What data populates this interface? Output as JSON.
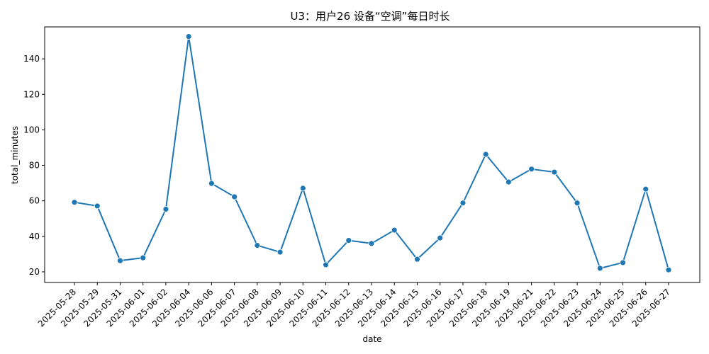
{
  "chart_data": {
    "type": "line",
    "title": "U3：用户26 设备“空调”每日时长",
    "xlabel": "date",
    "ylabel": "total_minutes",
    "ylim": [
      14,
      158
    ],
    "yticks": [
      20,
      40,
      60,
      80,
      100,
      120,
      140
    ],
    "grid": false,
    "color": "#1f77b4",
    "x": [
      "2025-05-28",
      "2025-05-29",
      "2025-05-31",
      "2025-06-01",
      "2025-06-02",
      "2025-06-04",
      "2025-06-06",
      "2025-06-07",
      "2025-06-08",
      "2025-06-09",
      "2025-06-10",
      "2025-06-11",
      "2025-06-12",
      "2025-06-13",
      "2025-06-14",
      "2025-06-15",
      "2025-06-16",
      "2025-06-17",
      "2025-06-18",
      "2025-06-19",
      "2025-06-21",
      "2025-06-22",
      "2025-06-23",
      "2025-06-24",
      "2025-06-25",
      "2025-06-26",
      "2025-06-27"
    ],
    "series": [
      {
        "values": [
          59.2,
          57.1,
          26.3,
          27.9,
          55.3,
          152.6,
          69.8,
          62.3,
          34.9,
          31.1,
          67.1,
          24.0,
          37.7,
          36.0,
          43.5,
          27.1,
          39.1,
          58.8,
          86.2,
          70.6,
          77.9,
          76.2,
          58.8,
          22.0,
          25.2,
          66.6,
          21.1
        ]
      }
    ]
  }
}
